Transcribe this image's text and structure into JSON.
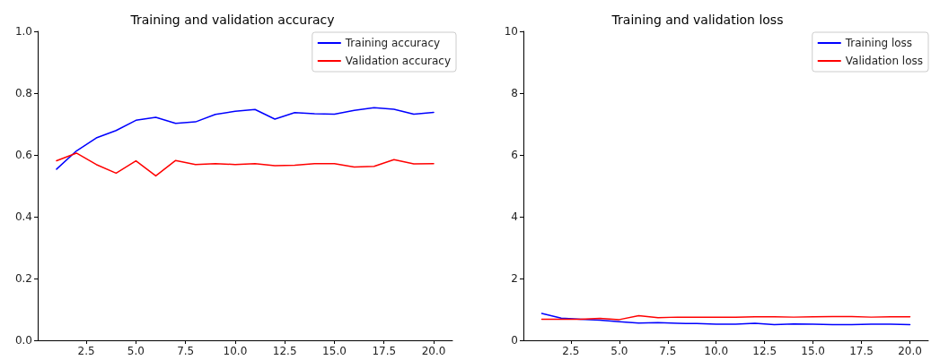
{
  "chart_data": [
    {
      "type": "line",
      "title": "Training and validation accuracy",
      "x": [
        1,
        2,
        3,
        4,
        5,
        6,
        7,
        8,
        9,
        10,
        11,
        12,
        13,
        14,
        15,
        16,
        17,
        18,
        19,
        20
      ],
      "series": [
        {
          "name": "Training accuracy",
          "color": "#0000ff",
          "values": [
            0.554,
            0.613,
            0.655,
            0.679,
            0.712,
            0.722,
            0.702,
            0.707,
            0.731,
            0.741,
            0.747,
            0.716,
            0.737,
            0.733,
            0.732,
            0.744,
            0.753,
            0.748,
            0.732,
            0.738
          ]
        },
        {
          "name": "Validation accuracy",
          "color": "#ff0000",
          "values": [
            0.581,
            0.606,
            0.569,
            0.541,
            0.581,
            0.532,
            0.582,
            0.569,
            0.572,
            0.569,
            0.572,
            0.565,
            0.567,
            0.572,
            0.572,
            0.561,
            0.563,
            0.585,
            0.571,
            0.572
          ]
        }
      ],
      "xlim": [
        0.05,
        20.95
      ],
      "xticks": [
        {
          "value": 2.5,
          "label": "2.5"
        },
        {
          "value": 5,
          "label": "5.0"
        },
        {
          "value": 7.5,
          "label": "7.5"
        },
        {
          "value": 10,
          "label": "10.0"
        },
        {
          "value": 12.5,
          "label": "12.5"
        },
        {
          "value": 15,
          "label": "15.0"
        },
        {
          "value": 17.5,
          "label": "17.5"
        },
        {
          "value": 20,
          "label": "20.0"
        }
      ],
      "ylim": [
        0,
        1
      ],
      "yticks": [
        {
          "value": 0,
          "label": "0.0"
        },
        {
          "value": 0.2,
          "label": "0.2"
        },
        {
          "value": 0.4,
          "label": "0.4"
        },
        {
          "value": 0.6,
          "label": "0.6"
        },
        {
          "value": 0.8,
          "label": "0.8"
        },
        {
          "value": 1,
          "label": "1.0"
        }
      ],
      "legend": "top right",
      "grid": false,
      "marker": "none",
      "line_style": "solid"
    },
    {
      "type": "line",
      "title": "Training and validation loss",
      "x": [
        1,
        2,
        3,
        4,
        5,
        6,
        7,
        8,
        9,
        10,
        11,
        12,
        13,
        14,
        15,
        16,
        17,
        18,
        19,
        20
      ],
      "series": [
        {
          "name": "Training loss",
          "color": "#0000ff",
          "values": [
            0.87,
            0.72,
            0.68,
            0.65,
            0.6,
            0.56,
            0.57,
            0.55,
            0.54,
            0.52,
            0.52,
            0.55,
            0.51,
            0.53,
            0.52,
            0.51,
            0.51,
            0.52,
            0.52,
            0.51
          ]
        },
        {
          "name": "Validation loss",
          "color": "#ff0000",
          "values": [
            0.68,
            0.68,
            0.68,
            0.71,
            0.67,
            0.8,
            0.73,
            0.75,
            0.75,
            0.75,
            0.75,
            0.76,
            0.76,
            0.75,
            0.76,
            0.77,
            0.77,
            0.75,
            0.76,
            0.76
          ]
        }
      ],
      "xlim": [
        0.05,
        20.95
      ],
      "xticks": [
        {
          "value": 2.5,
          "label": "2.5"
        },
        {
          "value": 5,
          "label": "5.0"
        },
        {
          "value": 7.5,
          "label": "7.5"
        },
        {
          "value": 10,
          "label": "10.0"
        },
        {
          "value": 12.5,
          "label": "12.5"
        },
        {
          "value": 15,
          "label": "15.0"
        },
        {
          "value": 17.5,
          "label": "17.5"
        },
        {
          "value": 20,
          "label": "20.0"
        }
      ],
      "ylim": [
        0,
        10
      ],
      "yticks": [
        0,
        2,
        4,
        6,
        8,
        10
      ],
      "legend": "top right",
      "grid": false,
      "marker": "none",
      "line_style": "solid"
    }
  ]
}
